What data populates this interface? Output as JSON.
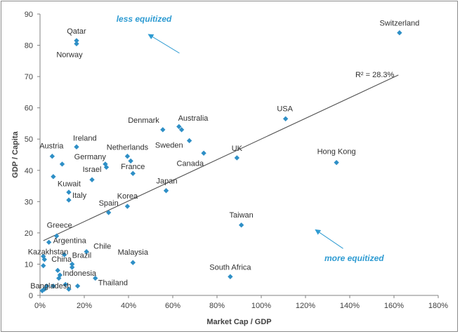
{
  "chart_data": {
    "type": "scatter",
    "xlabel": "Market Cap / GDP",
    "ylabel": "GDP / Capita",
    "xlim": [
      0,
      180
    ],
    "ylim": [
      0,
      90
    ],
    "x_ticks": [
      "0%",
      "20%",
      "40%",
      "60%",
      "80%",
      "100%",
      "120%",
      "140%",
      "160%",
      "180%"
    ],
    "y_ticks": [
      "0",
      "10",
      "20",
      "30",
      "40",
      "50",
      "60",
      "70",
      "80",
      "90"
    ],
    "grid": false,
    "marker_color": "#2e8fc6",
    "points": [
      {
        "label": "Qatar",
        "x": 16.5,
        "y": 81.5
      },
      {
        "label": "Norway",
        "x": 16.5,
        "y": 80.5
      },
      {
        "label": "Switzerland",
        "x": 162.5,
        "y": 84
      },
      {
        "label": "USA",
        "x": 111,
        "y": 56.5
      },
      {
        "label": "Denmark",
        "x": 55.5,
        "y": 53
      },
      {
        "label": "Australia",
        "x": 64,
        "y": 53
      },
      {
        "label": "",
        "x": 62.8,
        "y": 54
      },
      {
        "label": "Sweden",
        "x": 67.5,
        "y": 49.5
      },
      {
        "label": "Canada",
        "x": 74,
        "y": 45.5
      },
      {
        "label": "UK",
        "x": 89,
        "y": 44
      },
      {
        "label": "Hong Kong",
        "x": 134,
        "y": 42.5
      },
      {
        "label": "Ireland",
        "x": 16.5,
        "y": 47.5
      },
      {
        "label": "Austria",
        "x": 5.5,
        "y": 44.5
      },
      {
        "label": "",
        "x": 10,
        "y": 42
      },
      {
        "label": "Netherlands",
        "x": 39.5,
        "y": 44.5
      },
      {
        "label": "",
        "x": 41,
        "y": 43
      },
      {
        "label": "Germany",
        "x": 29.5,
        "y": 42
      },
      {
        "label": "",
        "x": 30,
        "y": 41
      },
      {
        "label": "France",
        "x": 42,
        "y": 39
      },
      {
        "label": "Israel",
        "x": 23.5,
        "y": 37
      },
      {
        "label": "Kuwait",
        "x": 6,
        "y": 38
      },
      {
        "label": "",
        "x": 13,
        "y": 33
      },
      {
        "label": "Italy",
        "x": 13,
        "y": 30.5
      },
      {
        "label": "Japan",
        "x": 57,
        "y": 33.5
      },
      {
        "label": "Korea",
        "x": 39.5,
        "y": 28.5
      },
      {
        "label": "Spain",
        "x": 31,
        "y": 26.5
      },
      {
        "label": "Taiwan",
        "x": 91,
        "y": 22.5
      },
      {
        "label": "Greece",
        "x": 7.5,
        "y": 19
      },
      {
        "label": "Argentina",
        "x": 4,
        "y": 17
      },
      {
        "label": "Chile",
        "x": 21,
        "y": 14
      },
      {
        "label": "Kazakhstan",
        "x": 1.5,
        "y": 12.5
      },
      {
        "label": "",
        "x": 11,
        "y": 13
      },
      {
        "label": "China",
        "x": 2,
        "y": 11.5
      },
      {
        "label": "Brazil",
        "x": 14.5,
        "y": 10
      },
      {
        "label": "",
        "x": 14.5,
        "y": 9
      },
      {
        "label": "Malaysia",
        "x": 42,
        "y": 10.5
      },
      {
        "label": "",
        "x": 1.5,
        "y": 9.5
      },
      {
        "label": "",
        "x": 8,
        "y": 8
      },
      {
        "label": "Indonesia",
        "x": 9,
        "y": 6.5
      },
      {
        "label": "",
        "x": 8.5,
        "y": 5.5
      },
      {
        "label": "Thailand",
        "x": 25,
        "y": 5.5
      },
      {
        "label": "South Africa",
        "x": 86,
        "y": 6
      },
      {
        "label": "Bangladesh",
        "x": 2,
        "y": 2
      },
      {
        "label": "",
        "x": 3,
        "y": 3
      },
      {
        "label": "",
        "x": 6,
        "y": 3
      },
      {
        "label": "",
        "x": 11.5,
        "y": 3.5
      },
      {
        "label": "",
        "x": 13,
        "y": 2
      },
      {
        "label": "",
        "x": 17,
        "y": 3
      },
      {
        "label": "",
        "x": 1,
        "y": 1.5
      }
    ],
    "trendline": {
      "x": [
        1.5,
        162
      ],
      "y": [
        17.5,
        70.5
      ],
      "label": "R² = 28.3%"
    },
    "annotations": [
      {
        "text": "less equitized",
        "x": 47,
        "y": 87.5,
        "arrow_from": [
          63,
          77.5
        ],
        "arrow_to": [
          49,
          83.5
        ]
      },
      {
        "text": "more equitized",
        "x": 142,
        "y": 11,
        "arrow_from": [
          137,
          15
        ],
        "arrow_to": [
          124.5,
          21
        ]
      }
    ]
  }
}
